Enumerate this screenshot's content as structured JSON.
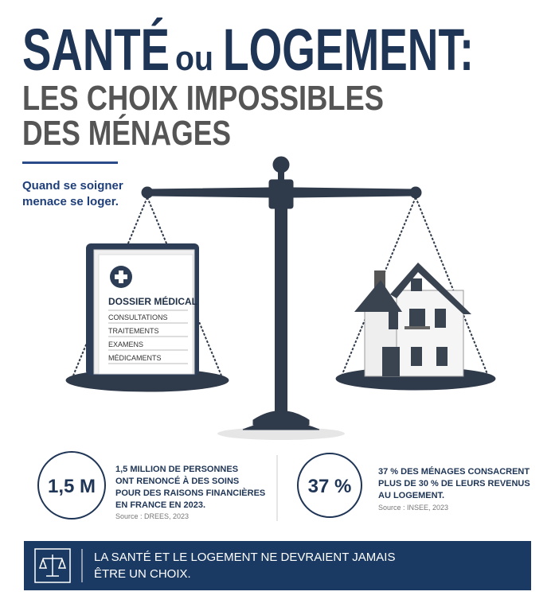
{
  "header": {
    "title": {
      "word1": "SANTÉ",
      "connector": "ou",
      "word2": "LOGEMENT:"
    },
    "subtitle": [
      "LES CHOIX IMPOSSIBLES",
      "DES MÉNAGES"
    ],
    "tagline": [
      "Quand se soigner",
      "menace se loger."
    ]
  },
  "folder": {
    "title": "DOSSIER MÉDICAL",
    "items": [
      "CONSULTATIONS",
      "TRAITEMENTS",
      "EXAMENS",
      "MÉDICAMENTS"
    ]
  },
  "stats": [
    {
      "figure": "1,5 M",
      "text": [
        "1,5 MILLION DE PERSONNES",
        "ONT RENONCÉ À DES SOINS",
        "POUR DES RAISONS FINANCIÈRES",
        "EN FRANCE EN 2023."
      ],
      "source": "Source : DREES, 2023"
    },
    {
      "figure": "37 %",
      "text": [
        "37 % DES MÉNAGES CONSACRENT",
        "PLUS DE 30 % DE LEURS REVENUS",
        "AU LOGEMENT."
      ],
      "source": "Source : INSEE, 2023"
    }
  ],
  "banner": {
    "text": [
      "LA SANTÉ ET LE LOGEMENT NE DEVRAIENT JAMAIS",
      "ÊTRE UN CHOIX."
    ]
  }
}
